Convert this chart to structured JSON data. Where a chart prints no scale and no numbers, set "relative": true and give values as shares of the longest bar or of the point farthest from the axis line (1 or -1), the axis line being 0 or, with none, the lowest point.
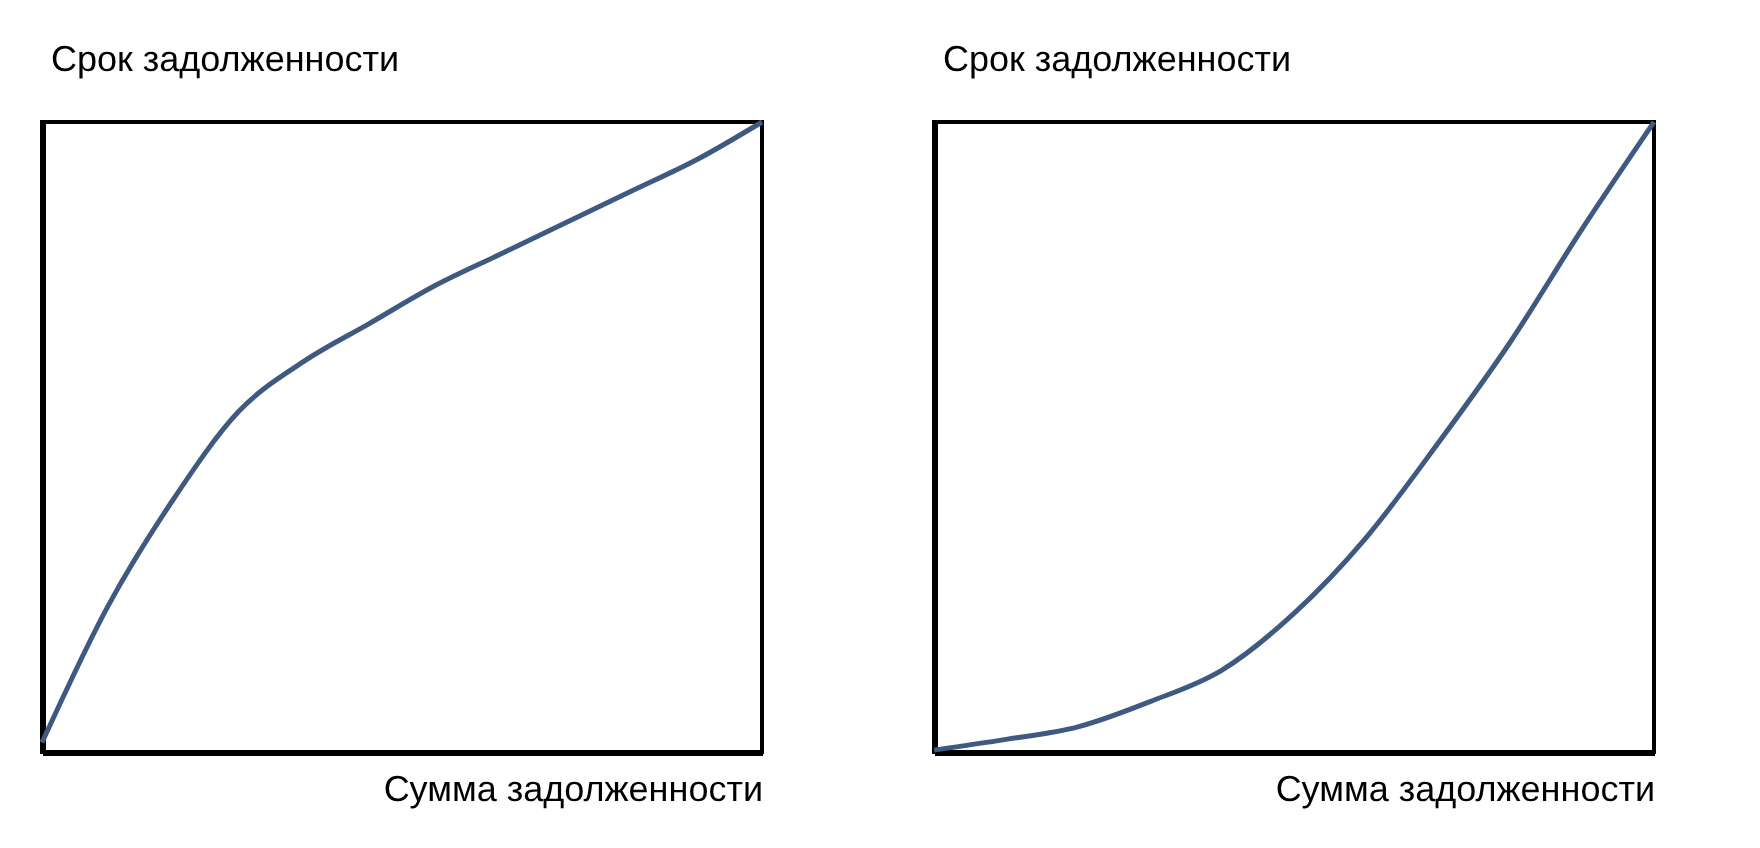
{
  "chart_data": [
    {
      "type": "line",
      "relative": true,
      "tick_labels": false,
      "xlabel": "Сумма задолженности",
      "ylabel": "Срок задолженности",
      "categories": [
        null,
        null,
        null,
        null,
        null,
        null,
        null,
        null,
        null,
        null,
        null,
        null
      ],
      "series": [
        {
          "color": "#3f5a80",
          "values": [
            0.015,
            0.23,
            0.4,
            0.54,
            0.62,
            0.68,
            0.74,
            0.79,
            0.84,
            0.89,
            0.94,
            1.0
          ]
        }
      ]
    },
    {
      "type": "line",
      "relative": true,
      "tick_labels": false,
      "xlabel": "Сумма задолженности",
      "ylabel": "Срок задолженности",
      "categories": [
        null,
        null,
        null,
        null,
        null,
        null,
        null,
        null,
        null,
        null,
        null
      ],
      "series": [
        {
          "color": "#3f5a80",
          "values": [
            0.003,
            0.02,
            0.04,
            0.08,
            0.13,
            0.22,
            0.34,
            0.49,
            0.65,
            0.83,
            1.0
          ]
        }
      ]
    }
  ]
}
